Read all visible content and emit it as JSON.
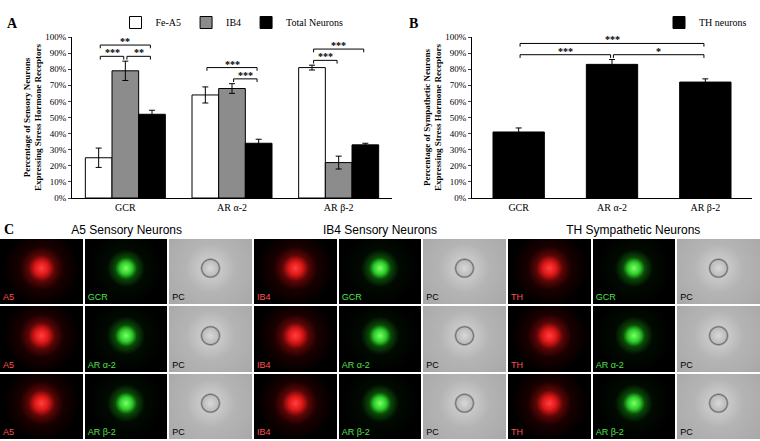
{
  "chart_data": [
    {
      "type": "bar",
      "title": "A",
      "y_label": [
        "Percentage of Sensory Neurons",
        "Expressing Stress Hormone Receptors"
      ],
      "categories": [
        "GCR",
        "AR α-2",
        "AR β-2"
      ],
      "series": [
        {
          "name": "Fe-A5",
          "color": "#ffffff",
          "values": [
            25,
            64,
            81
          ],
          "errors": [
            6,
            5,
            1.5
          ]
        },
        {
          "name": "IB4",
          "color": "#8c8c8c",
          "values": [
            79,
            68,
            22
          ],
          "errors": [
            6,
            3,
            4
          ]
        },
        {
          "name": "Total Neurons",
          "color": "#000000",
          "values": [
            52,
            34,
            33
          ],
          "errors": [
            2.5,
            2.5,
            1
          ]
        }
      ],
      "ylim": [
        0,
        100
      ],
      "yticks": [
        {
          "value": 0,
          "label": "0%"
        },
        {
          "value": 10,
          "label": "10%"
        },
        {
          "value": 20,
          "label": "20%"
        },
        {
          "value": 30,
          "label": "30%"
        },
        {
          "value": 40,
          "label": "40%"
        },
        {
          "value": 50,
          "label": "50%"
        },
        {
          "value": 60,
          "label": "60%"
        },
        {
          "value": 70,
          "label": "70%"
        },
        {
          "value": 80,
          "label": "80%"
        },
        {
          "value": 90,
          "label": "90%"
        },
        {
          "value": 100,
          "label": "100%"
        }
      ],
      "grid": false,
      "legend": "top",
      "comparisons": [
        {
          "category": "GCR",
          "from": "Fe-A5",
          "to": "IB4",
          "label": "***"
        },
        {
          "category": "GCR",
          "from": "IB4",
          "to": "Total Neurons",
          "label": "**"
        },
        {
          "category": "GCR",
          "from": "Fe-A5",
          "to": "Total Neurons",
          "label": "**"
        },
        {
          "category": "AR α-2",
          "from": "IB4",
          "to": "Total Neurons",
          "label": "***"
        },
        {
          "category": "AR α-2",
          "from": "Fe-A5",
          "to": "Total Neurons",
          "label": "***"
        },
        {
          "category": "AR β-2",
          "from": "Fe-A5",
          "to": "IB4",
          "label": "***"
        },
        {
          "category": "AR β-2",
          "from": "Fe-A5",
          "to": "Total Neurons",
          "label": "***"
        }
      ]
    },
    {
      "type": "bar",
      "title": "B",
      "y_label": [
        "Percentage of Sympathetic Neurons",
        "Expressing Stress Hormone Receptors"
      ],
      "categories": [
        "GCR",
        "AR α-2",
        "AR β-2"
      ],
      "series": [
        {
          "name": "TH neurons",
          "color": "#000000",
          "values": [
            41,
            83,
            72
          ],
          "errors": [
            2.5,
            3,
            2
          ]
        }
      ],
      "ylim": [
        0,
        100
      ],
      "yticks": [
        {
          "value": 0,
          "label": "0%"
        },
        {
          "value": 10,
          "label": "10%"
        },
        {
          "value": 20,
          "label": "20%"
        },
        {
          "value": 30,
          "label": "30%"
        },
        {
          "value": 40,
          "label": "40%"
        },
        {
          "value": 50,
          "label": "50%"
        },
        {
          "value": 60,
          "label": "60%"
        },
        {
          "value": 70,
          "label": "70%"
        },
        {
          "value": 80,
          "label": "80%"
        },
        {
          "value": 90,
          "label": "90%"
        },
        {
          "value": 100,
          "label": "100%"
        }
      ],
      "grid": false,
      "legend": "top right",
      "comparisons": [
        {
          "from": "GCR",
          "to": "AR α-2",
          "label": "***"
        },
        {
          "from": "AR α-2",
          "to": "AR β-2",
          "label": "*"
        },
        {
          "from": "GCR",
          "to": "AR β-2",
          "label": "***"
        }
      ]
    }
  ],
  "image_panel": {
    "title": "C",
    "groups": [
      {
        "title": "A5 Sensory Neurons",
        "marker": "A5"
      },
      {
        "title": "IB4 Sensory Neurons",
        "marker": "IB4"
      },
      {
        "title": "TH Sympathetic Neurons",
        "marker": "TH"
      }
    ],
    "stains": [
      "GCR",
      "AR α-2",
      "AR β-2"
    ],
    "phase_contrast": "PC"
  }
}
